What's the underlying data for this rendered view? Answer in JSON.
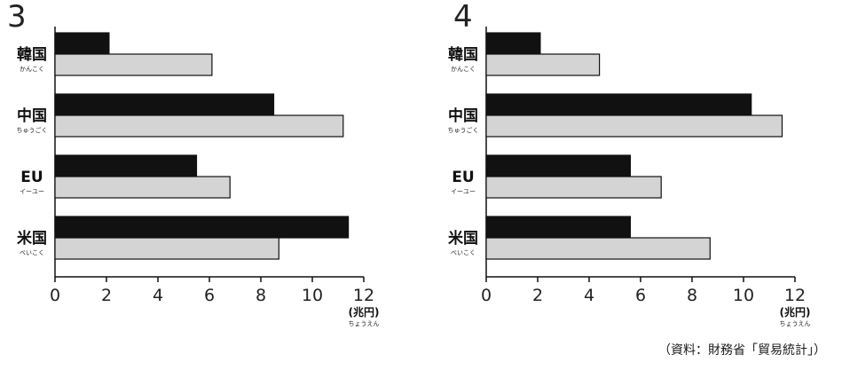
{
  "source_note": "（資料：財務省「貿易統計」）",
  "chart_data": [
    {
      "type": "bar",
      "orientation": "horizontal",
      "title": "3",
      "categories": [
        "韓国",
        "中国",
        "EU",
        "米国"
      ],
      "category_readings": [
        "かんこく",
        "ちゅうごく",
        "イーユー",
        "べいこく"
      ],
      "series": [
        {
          "values": [
            2.1,
            8.5,
            5.5,
            11.4
          ],
          "color": "#111111"
        },
        {
          "values": [
            6.1,
            11.2,
            6.8,
            8.7
          ],
          "color": "#d4d4d4"
        }
      ],
      "xlim": [
        0,
        12
      ],
      "xticks": [
        0,
        2,
        4,
        6,
        8,
        10,
        12
      ],
      "unit": "(兆円)",
      "unit_reading": "ちょうえん",
      "grid": false
    },
    {
      "type": "bar",
      "orientation": "horizontal",
      "title": "4",
      "categories": [
        "韓国",
        "中国",
        "EU",
        "米国"
      ],
      "category_readings": [
        "かんこく",
        "ちゅうごく",
        "イーユー",
        "べいこく"
      ],
      "series": [
        {
          "values": [
            2.1,
            10.3,
            5.6,
            5.6
          ],
          "color": "#111111"
        },
        {
          "values": [
            4.4,
            11.5,
            6.8,
            8.7
          ],
          "color": "#d4d4d4"
        }
      ],
      "xlim": [
        0,
        12
      ],
      "xticks": [
        0,
        2,
        4,
        6,
        8,
        10,
        12
      ],
      "unit": "(兆円)",
      "unit_reading": "ちょうえん",
      "grid": false
    }
  ]
}
